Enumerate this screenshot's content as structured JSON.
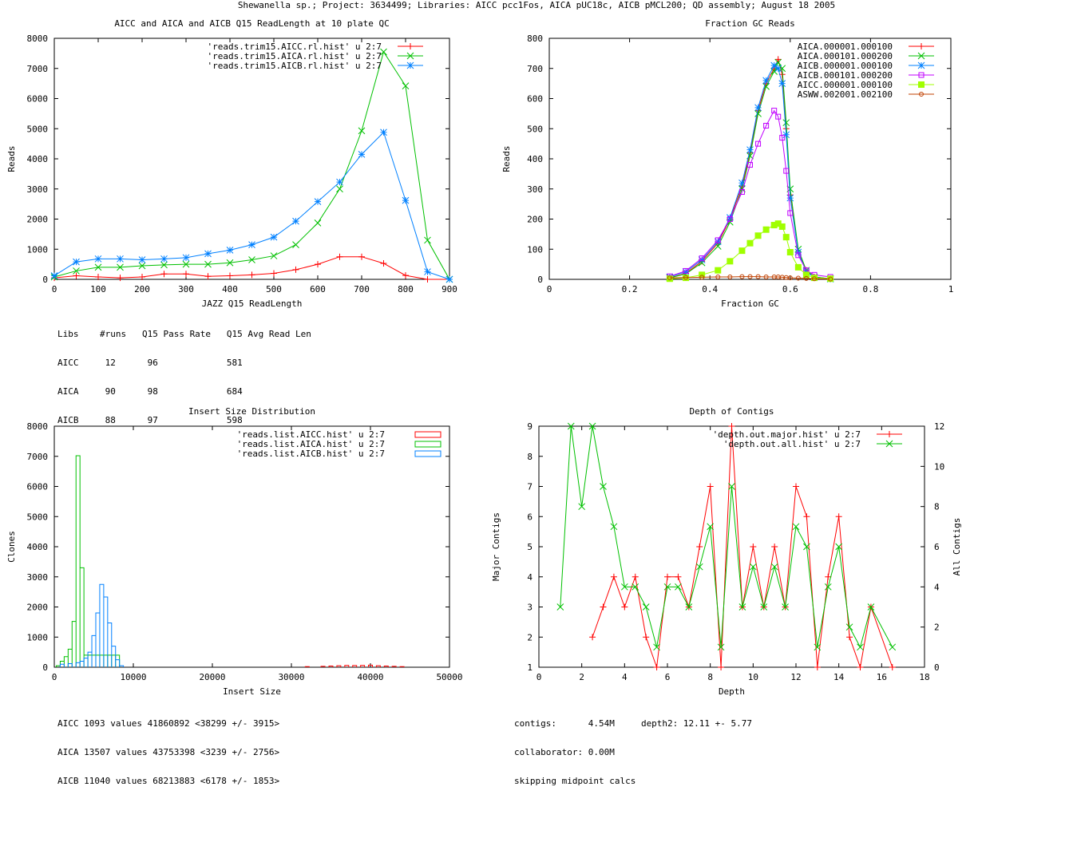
{
  "title": "Shewanella sp.; Project: 3634499; Libraries: AICC pcc1Fos, AICA pUC18c, AICB pMCL200; QD assembly; August 18 2005",
  "chart_data": [
    {
      "id": "readlength",
      "type": "line",
      "title": "AICC and AICA and AICB Q15 ReadLength at 10 plate QC",
      "xlabel": "JAZZ Q15 ReadLength",
      "ylabel": "Reads",
      "xlim": [
        0,
        900
      ],
      "ylim": [
        0,
        8000
      ],
      "xticks": [
        0,
        100,
        200,
        300,
        400,
        500,
        600,
        700,
        800,
        900
      ],
      "yticks": [
        0,
        1000,
        2000,
        3000,
        4000,
        5000,
        6000,
        7000,
        8000
      ],
      "legend_position": "top-right",
      "x": [
        0,
        50,
        100,
        150,
        200,
        250,
        300,
        350,
        400,
        450,
        500,
        550,
        600,
        650,
        700,
        750,
        800,
        850,
        900
      ],
      "series": [
        {
          "name": "'reads.trim15.AICC.rl.hist' u 2:7",
          "color": "#ff0000",
          "marker": "plus",
          "values": [
            50,
            120,
            80,
            50,
            80,
            180,
            180,
            100,
            120,
            150,
            200,
            320,
            500,
            750,
            750,
            530,
            130,
            0,
            0
          ]
        },
        {
          "name": "'reads.trim15.AICA.rl.hist' u 2:7",
          "color": "#00c000",
          "marker": "cross",
          "values": [
            80,
            280,
            400,
            400,
            450,
            480,
            500,
            500,
            550,
            650,
            780,
            1150,
            1870,
            3000,
            4930,
            7550,
            6420,
            1300,
            0
          ]
        },
        {
          "name": "'reads.trim15.AICB.rl.hist' u 2:7",
          "color": "#0080ff",
          "marker": "star",
          "values": [
            120,
            580,
            680,
            680,
            650,
            680,
            720,
            850,
            970,
            1150,
            1400,
            1930,
            2580,
            3230,
            4150,
            4880,
            2620,
            250,
            0
          ]
        }
      ]
    },
    {
      "id": "gc",
      "type": "line",
      "title": "Fraction GC Reads",
      "xlabel": "Fraction GC",
      "ylabel": "Reads",
      "xlim": [
        0,
        1
      ],
      "ylim": [
        0,
        800
      ],
      "xticks": [
        0,
        0.2,
        0.4,
        0.6,
        0.8,
        1
      ],
      "yticks": [
        0,
        100,
        200,
        300,
        400,
        500,
        600,
        700,
        800
      ],
      "legend_position": "top-right",
      "x": [
        0.3,
        0.34,
        0.38,
        0.42,
        0.45,
        0.48,
        0.5,
        0.52,
        0.54,
        0.56,
        0.57,
        0.58,
        0.59,
        0.6,
        0.62,
        0.64,
        0.66,
        0.7
      ],
      "series": [
        {
          "name": "AICA.000001.000100",
          "color": "#ff0000",
          "marker": "plus",
          "values": [
            5,
            20,
            60,
            120,
            200,
            310,
            420,
            560,
            650,
            700,
            730,
            680,
            500,
            280,
            90,
            30,
            8,
            2
          ]
        },
        {
          "name": "AICA.000101.000200",
          "color": "#00c000",
          "marker": "cross",
          "values": [
            5,
            18,
            55,
            110,
            190,
            300,
            410,
            550,
            640,
            690,
            720,
            700,
            520,
            300,
            100,
            30,
            8,
            2
          ]
        },
        {
          "name": "AICB.000001.000100",
          "color": "#0080ff",
          "marker": "star",
          "values": [
            8,
            25,
            65,
            125,
            205,
            320,
            430,
            570,
            660,
            710,
            700,
            650,
            480,
            270,
            90,
            25,
            6,
            1
          ]
        },
        {
          "name": "AICB.000101.000200",
          "color": "#c000ff",
          "marker": "square",
          "values": [
            10,
            28,
            70,
            130,
            200,
            290,
            380,
            450,
            510,
            560,
            540,
            470,
            360,
            220,
            80,
            30,
            15,
            8
          ]
        },
        {
          "name": "AICC.000001.000100",
          "color": "#a0ff00",
          "marker": "filled-square",
          "values": [
            2,
            5,
            15,
            30,
            60,
            95,
            120,
            145,
            165,
            180,
            185,
            175,
            140,
            90,
            40,
            15,
            5,
            2
          ]
        },
        {
          "name": "ASWW.002001.002100",
          "color": "#c04000",
          "marker": "circle",
          "values": [
            5,
            6,
            7,
            8,
            8,
            9,
            9,
            9,
            8,
            8,
            8,
            7,
            6,
            5,
            4,
            3,
            2,
            1
          ]
        }
      ]
    },
    {
      "id": "insert",
      "type": "bar",
      "title": "Insert Size Distribution",
      "xlabel": "Insert Size",
      "ylabel": "Clones",
      "xlim": [
        0,
        50000
      ],
      "ylim": [
        0,
        8000
      ],
      "xticks": [
        0,
        10000,
        20000,
        30000,
        40000,
        50000
      ],
      "yticks": [
        0,
        1000,
        2000,
        3000,
        4000,
        5000,
        6000,
        7000,
        8000
      ],
      "legend_position": "top-right",
      "bin_width": 500,
      "series": [
        {
          "name": "'reads.list.AICC.hist' u 2:7",
          "color": "#ff0000",
          "x": [
            32000,
            34000,
            35000,
            36000,
            37000,
            38000,
            39000,
            40000,
            41000,
            42000,
            43000,
            44000
          ],
          "values": [
            20,
            30,
            40,
            50,
            60,
            55,
            60,
            70,
            50,
            40,
            30,
            20
          ]
        },
        {
          "name": "'reads.list.AICA.hist' u 2:7",
          "color": "#00c000",
          "x": [
            500,
            1000,
            1500,
            2000,
            2500,
            3000,
            3500,
            4000,
            4500,
            5000,
            5500,
            6000,
            6500,
            7000,
            7500,
            8000
          ],
          "values": [
            50,
            200,
            350,
            600,
            1520,
            7020,
            3300,
            400,
            400,
            400,
            400,
            400,
            400,
            400,
            400,
            400
          ]
        },
        {
          "name": "'reads.list.AICB.hist' u 2:7",
          "color": "#0080ff",
          "x": [
            1000,
            2000,
            3000,
            3500,
            4000,
            4500,
            5000,
            5500,
            6000,
            6500,
            7000,
            7500,
            8000,
            8500
          ],
          "values": [
            100,
            120,
            150,
            200,
            300,
            500,
            1050,
            1800,
            2750,
            2330,
            1470,
            700,
            250,
            50
          ]
        }
      ]
    },
    {
      "id": "depth",
      "type": "line",
      "title": "Depth of Contigs",
      "xlabel": "Depth",
      "ylabel": "Major Contigs",
      "y2label": "All Contigs",
      "xlim": [
        0,
        18
      ],
      "ylim": [
        1,
        9
      ],
      "y2lim": [
        0,
        12
      ],
      "xticks": [
        0,
        2,
        4,
        6,
        8,
        10,
        12,
        14,
        16,
        18
      ],
      "yticks": [
        1,
        2,
        3,
        4,
        5,
        6,
        7,
        8,
        9
      ],
      "y2ticks": [
        0,
        2,
        4,
        6,
        8,
        10,
        12
      ],
      "legend_position": "top-right",
      "series": [
        {
          "name": "'depth.out.major.hist' u 2:7",
          "color": "#ff0000",
          "marker": "plus",
          "axis": "left",
          "x": [
            2.5,
            3,
            3.5,
            4,
            4.5,
            5,
            5.5,
            6,
            6.5,
            7,
            7.5,
            8,
            8.5,
            9,
            9.5,
            10,
            10.5,
            11,
            11.5,
            12,
            12.5,
            13,
            13.5,
            14,
            14.5,
            15,
            15.5,
            16.5
          ],
          "values": [
            2,
            3,
            4,
            3,
            4,
            2,
            1,
            4,
            4,
            3,
            5,
            7,
            1,
            9,
            3,
            5,
            3,
            5,
            3,
            7,
            6,
            1,
            4,
            6,
            2,
            1,
            3,
            1
          ]
        },
        {
          "name": "'depth.out.all.hist' u 2:7",
          "color": "#00c000",
          "marker": "cross",
          "axis": "right",
          "x": [
            1,
            1.5,
            2,
            2.5,
            3,
            3.5,
            4,
            4.5,
            5,
            5.5,
            6,
            6.5,
            7,
            7.5,
            8,
            8.5,
            9,
            9.5,
            10,
            10.5,
            11,
            11.5,
            12,
            12.5,
            13,
            13.5,
            14,
            14.5,
            15,
            15.5,
            16.5
          ],
          "values": [
            3,
            12,
            8,
            12,
            9,
            7,
            4,
            4,
            3,
            1,
            4,
            4,
            3,
            5,
            7,
            1,
            9,
            3,
            5,
            3,
            5,
            3,
            7,
            6,
            1,
            4,
            6,
            2,
            1,
            3,
            1
          ]
        }
      ]
    }
  ],
  "notes": {
    "readlength": [
      "Libs    #runs   Q15 Pass Rate   Q15 Avg Read Len",
      "AICC     12      96             581",
      "AICA     90      98             684",
      "AICB     88      97             598"
    ],
    "insert": [
      "AICC 1093 values 41860892 <38299 +/- 3915>",
      "AICA 13507 values 43753398 <3239 +/- 2756>",
      "AICB 11040 values 68213883 <6178 +/- 1853>"
    ],
    "depth": [
      "contigs:      4.54M     depth2: 12.11 +- 5.77",
      "collaborator: 0.00M",
      "skipping midpoint calcs"
    ]
  }
}
